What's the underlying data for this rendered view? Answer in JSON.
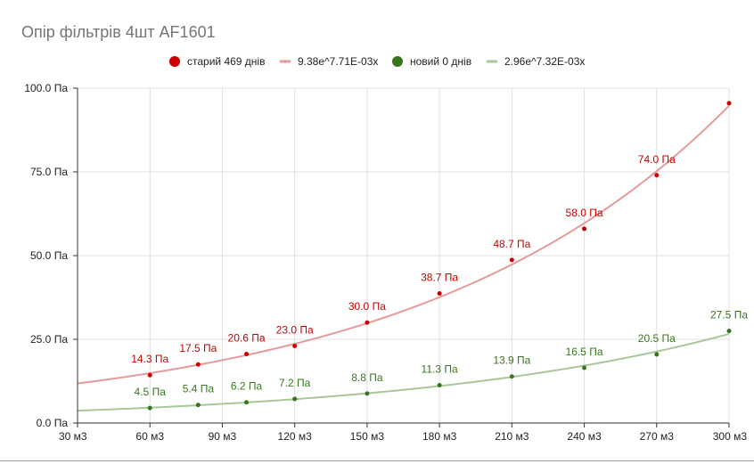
{
  "colors": {
    "old": "#cc0000",
    "old_trend": "#e69a9a",
    "new": "#38761d",
    "new_trend": "#a8c89a",
    "grid": "#e0e0e0",
    "axis": "#333333",
    "title": "#757575"
  },
  "chart_data": {
    "type": "scatter",
    "title": "Опір фільтрів 4шт AF1601",
    "xlabel": "",
    "ylabel": "",
    "xlim": [
      30,
      300
    ],
    "ylim": [
      0,
      100
    ],
    "x_ticks": [
      30,
      60,
      90,
      120,
      150,
      180,
      210,
      240,
      270,
      300
    ],
    "x_tick_labels": [
      "30 м3",
      "60 м3",
      "90 м3",
      "120 м3",
      "150 м3",
      "180 м3",
      "210 м3",
      "240 м3",
      "270 м3",
      "300 м3"
    ],
    "y_ticks": [
      0,
      25,
      50,
      75,
      100
    ],
    "y_tick_labels": [
      "0.0 Па",
      "25.0 Па",
      "50.0 Па",
      "75.0 Па",
      "100.0 Па"
    ],
    "grid": true,
    "legend_position": "top",
    "legend": [
      "старий 469 днів",
      "9.38e^7.71E-03x",
      "новий 0 днів",
      "2.96e^7.32E-03x"
    ],
    "series": [
      {
        "name": "старий 469 днів",
        "x": [
          60,
          80,
          100,
          120,
          150,
          180,
          210,
          240,
          270,
          300
        ],
        "values": [
          14.3,
          17.5,
          20.6,
          23.0,
          30.0,
          38.7,
          48.7,
          58.0,
          74.0,
          95.5
        ],
        "labels": [
          "14.3 Па",
          "17.5 Па",
          "20.6 Па",
          "23.0 Па",
          "30.0 Па",
          "38.7 Па",
          "48.7 Па",
          "58.0 Па",
          "74.0 Па",
          ""
        ]
      },
      {
        "name": "новий 0 днів",
        "x": [
          60,
          80,
          100,
          120,
          150,
          180,
          210,
          240,
          270,
          300
        ],
        "values": [
          4.5,
          5.4,
          6.2,
          7.2,
          8.8,
          11.3,
          13.9,
          16.5,
          20.5,
          27.5
        ],
        "labels": [
          "4.5 Па",
          "5.4 Па",
          "6.2 Па",
          "7.2 Па",
          "8.8 Па",
          "11.3 Па",
          "13.9 Па",
          "16.5 Па",
          "20.5 Па",
          "27.5 Па"
        ]
      }
    ],
    "trendlines": [
      {
        "name": "9.38e^7.71E-03x",
        "type": "exponential",
        "a": 9.38,
        "b": 0.00771
      },
      {
        "name": "2.96e^7.32E-03x",
        "type": "exponential",
        "a": 2.96,
        "b": 0.00732
      }
    ]
  }
}
